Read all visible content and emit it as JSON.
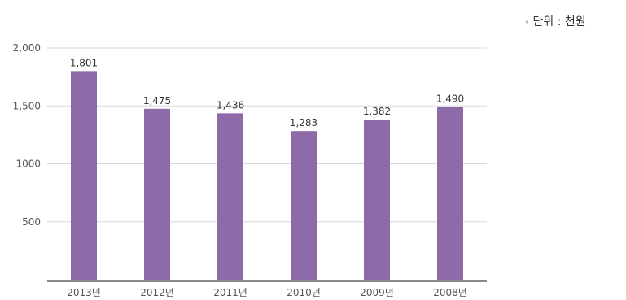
{
  "chart_data": {
    "type": "bar",
    "title": "",
    "unit_note": "단위 : 천원",
    "categories": [
      "2013년",
      "2012년",
      "2011년",
      "2010년",
      "2009년",
      "2008년"
    ],
    "values": [
      1801,
      1475,
      1436,
      1283,
      1382,
      1490
    ],
    "data_labels": [
      "1,801",
      "1,475",
      "1,436",
      "1,283",
      "1,382",
      "1,490"
    ],
    "y_ticks": [
      {
        "value": 2000,
        "label": "2,000"
      },
      {
        "value": 1500,
        "label": "1,500"
      },
      {
        "value": 1000,
        "label": "1000"
      },
      {
        "value": 500,
        "label": "500"
      }
    ],
    "ylim": [
      0,
      2000
    ],
    "grid": true,
    "legend": "none",
    "bar_color": "#8e6ba8",
    "axis_color": "#8a8a8a",
    "grid_color": "#d8d8d8"
  }
}
